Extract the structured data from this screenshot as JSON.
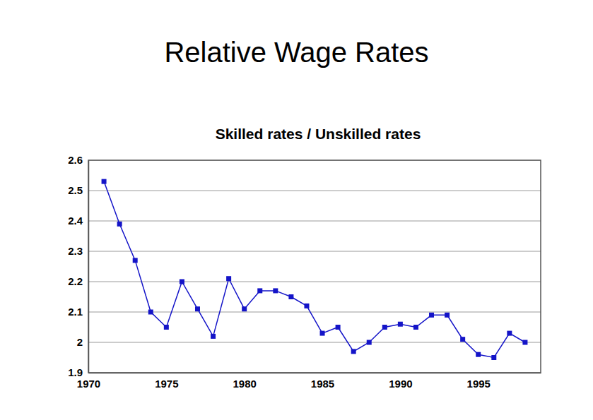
{
  "chart_data": {
    "type": "line",
    "title": "Relative Wage Rates",
    "subtitle": "Skilled rates / Unskilled rates",
    "x": [
      1971,
      1972,
      1973,
      1974,
      1975,
      1976,
      1977,
      1978,
      1979,
      1980,
      1981,
      1982,
      1983,
      1984,
      1985,
      1986,
      1987,
      1988,
      1989,
      1990,
      1991,
      1992,
      1993,
      1994,
      1995,
      1996,
      1997,
      1998
    ],
    "values": [
      2.53,
      2.39,
      2.27,
      2.1,
      2.05,
      2.2,
      2.11,
      2.02,
      2.21,
      2.11,
      2.17,
      2.17,
      2.15,
      2.12,
      2.03,
      2.05,
      1.97,
      2.0,
      2.05,
      2.06,
      2.05,
      2.09,
      2.09,
      2.01,
      1.96,
      1.95,
      2.03,
      2.0
    ],
    "color": "#1414c8",
    "marker": "square",
    "xlim": [
      1970,
      1999
    ],
    "xticks": [
      1970,
      1975,
      1980,
      1985,
      1990,
      1995
    ],
    "ylim": [
      1.9,
      2.6
    ],
    "yticks": [
      1.9,
      2,
      2.1,
      2.2,
      2.3,
      2.4,
      2.5,
      2.6
    ],
    "grid": true
  }
}
